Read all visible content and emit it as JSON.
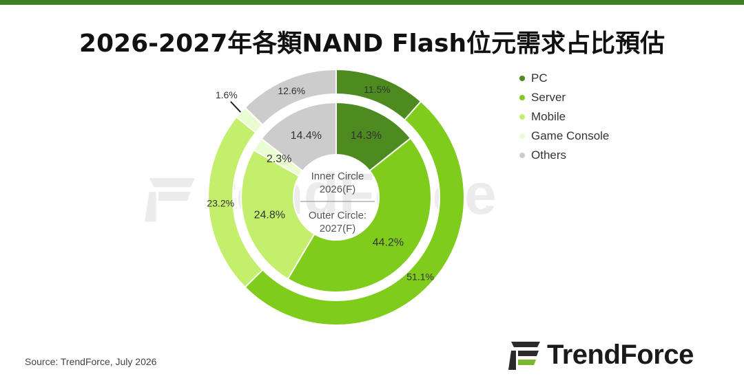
{
  "title": "2026-2027年各類NAND Flash位元需求占比預估",
  "watermark": "rendForce",
  "center_labels": {
    "inner_line1": "Inner Circle",
    "inner_line2": "2026(F)",
    "outer_line1": "Outer Circle:",
    "outer_line2": "2027(F)"
  },
  "chart_data": {
    "type": "pie",
    "subtype": "nested-donut",
    "categories": [
      "PC",
      "Server",
      "Mobile",
      "Game Console",
      "Others"
    ],
    "colors": [
      "#4d8a1f",
      "#7fcc1c",
      "#c3ef6c",
      "#eafcd2",
      "#cccccc"
    ],
    "series": [
      {
        "name": "2026(F)",
        "ring": "inner",
        "values": [
          14.3,
          44.2,
          24.8,
          2.3,
          14.4
        ]
      },
      {
        "name": "2027(F)",
        "ring": "outer",
        "values": [
          11.5,
          51.1,
          23.2,
          1.6,
          12.6
        ]
      }
    ],
    "labels": {
      "inner": [
        "14.3%",
        "44.2%",
        "24.8%",
        "2.3%",
        "14.4%"
      ],
      "outer": [
        "11.5%",
        "51.1%",
        "23.2%",
        "1.6%",
        "12.6%"
      ]
    },
    "legend_position": "top-right"
  },
  "legend": [
    {
      "label": "PC",
      "color": "#4d8a1f"
    },
    {
      "label": "Server",
      "color": "#7fcc1c"
    },
    {
      "label": "Mobile",
      "color": "#c3ef6c"
    },
    {
      "label": "Game Console",
      "color": "#eafcd2"
    },
    {
      "label": "Others",
      "color": "#cccccc"
    }
  ],
  "source": "Source: TrendForce, July 2026",
  "logo": {
    "text": "TrendForce",
    "icon": "trendforce-logo-icon"
  }
}
